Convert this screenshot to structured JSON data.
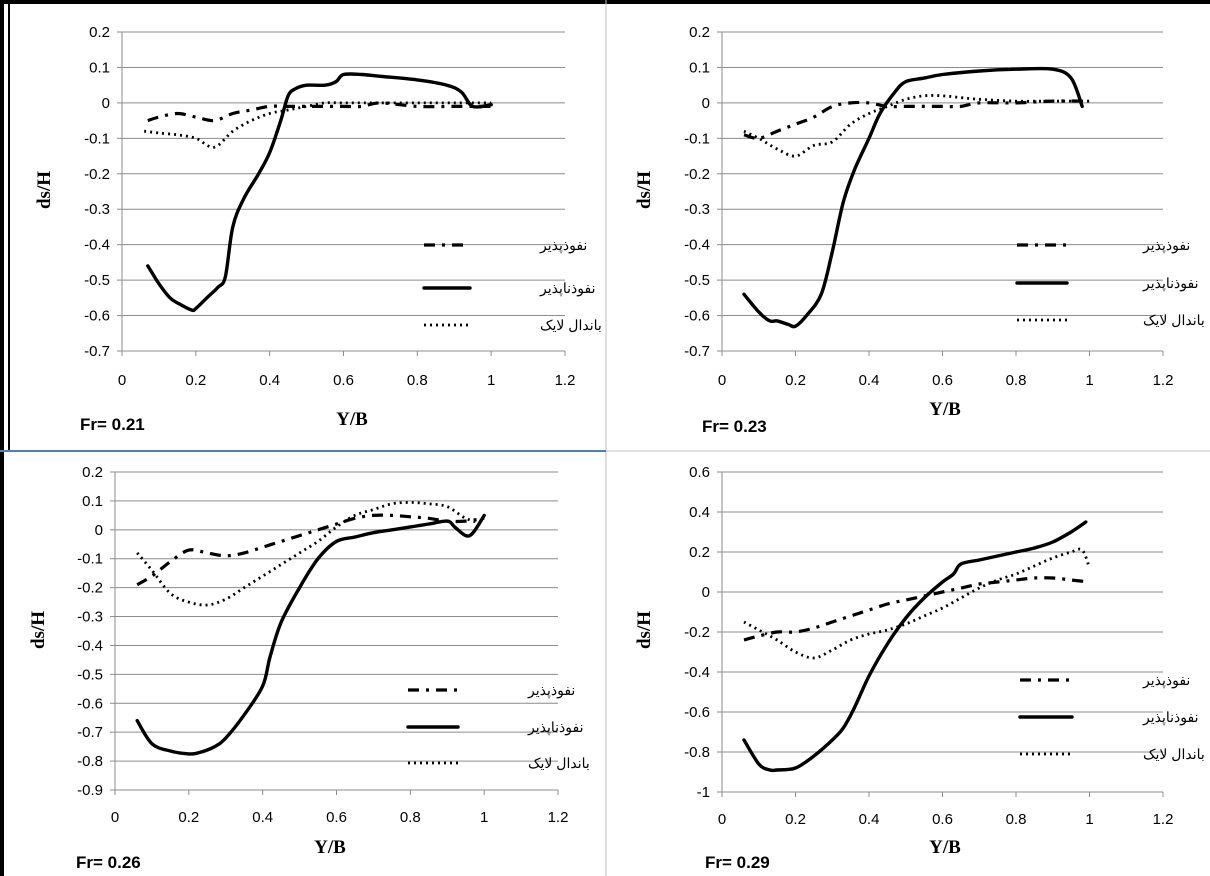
{
  "chart_data": [
    {
      "type": "line",
      "panel_label": "Fr= 0.21",
      "xlabel": "Y/B",
      "ylabel": "ds/H",
      "xlim": [
        0,
        1.2
      ],
      "ylim": [
        -0.7,
        0.2
      ],
      "xticks": [
        "0",
        "0.2",
        "0.4",
        "0.6",
        "0.8",
        "1",
        "1.2"
      ],
      "yticks": [
        "0.2",
        "0.1",
        "0",
        "-0.1",
        "-0.2",
        "-0.3",
        "-0.4",
        "-0.5",
        "-0.6",
        "-0.7"
      ],
      "grid": "horizontal",
      "legend": "bottom-right",
      "series": [
        {
          "name": "نفوذپذیر",
          "style": "dashdot",
          "x": [
            0.07,
            0.1,
            0.15,
            0.2,
            0.25,
            0.3,
            0.35,
            0.4,
            0.45,
            0.5,
            0.55,
            0.6,
            0.65,
            0.7,
            0.8,
            0.9,
            1.0
          ],
          "y": [
            -0.05,
            -0.04,
            -0.03,
            -0.04,
            -0.05,
            -0.03,
            -0.02,
            -0.01,
            -0.01,
            -0.01,
            -0.01,
            -0.01,
            -0.01,
            0.0,
            -0.01,
            -0.01,
            -0.01
          ]
        },
        {
          "name": "نفوذناپذیر",
          "style": "solid",
          "x": [
            0.07,
            0.1,
            0.13,
            0.16,
            0.19,
            0.2,
            0.23,
            0.26,
            0.28,
            0.3,
            0.33,
            0.37,
            0.4,
            0.43,
            0.45,
            0.47,
            0.5,
            0.55,
            0.58,
            0.6,
            0.65,
            0.7,
            0.8,
            0.88,
            0.92,
            0.95,
            1.0
          ],
          "y": [
            -0.46,
            -0.51,
            -0.55,
            -0.57,
            -0.585,
            -0.58,
            -0.55,
            -0.52,
            -0.49,
            -0.35,
            -0.27,
            -0.2,
            -0.14,
            -0.05,
            0.02,
            0.04,
            0.05,
            0.05,
            0.06,
            0.08,
            0.08,
            0.075,
            0.065,
            0.05,
            0.03,
            -0.01,
            -0.005
          ]
        },
        {
          "name": "باندال لایک",
          "style": "dotted",
          "x": [
            0.06,
            0.1,
            0.15,
            0.2,
            0.25,
            0.3,
            0.35,
            0.4,
            0.45,
            0.5,
            0.55,
            0.6,
            0.65,
            0.7,
            0.8,
            0.9,
            1.0
          ],
          "y": [
            -0.08,
            -0.085,
            -0.09,
            -0.1,
            -0.125,
            -0.08,
            -0.05,
            -0.03,
            -0.02,
            -0.01,
            0.0,
            0.0,
            0.0,
            0.0,
            0.0,
            0.0,
            0.0
          ]
        }
      ]
    },
    {
      "type": "line",
      "panel_label": "Fr= 0.23",
      "xlabel": "Y/B",
      "ylabel": "ds/H",
      "xlim": [
        0,
        1.2
      ],
      "ylim": [
        -0.7,
        0.2
      ],
      "xticks": [
        "0",
        "0.2",
        "0.4",
        "0.6",
        "0.8",
        "1",
        "1.2"
      ],
      "yticks": [
        "0.2",
        "0.1",
        "0",
        "-0.1",
        "-0.2",
        "-0.3",
        "-0.4",
        "-0.5",
        "-0.6",
        "-0.7"
      ],
      "grid": "horizontal",
      "legend": "bottom-right",
      "series": [
        {
          "name": "نفوذپذیر",
          "style": "dashdot",
          "x": [
            0.06,
            0.1,
            0.15,
            0.2,
            0.25,
            0.3,
            0.35,
            0.4,
            0.45,
            0.5,
            0.55,
            0.6,
            0.65,
            0.7,
            0.8,
            0.9,
            1.0
          ],
          "y": [
            -0.09,
            -0.1,
            -0.08,
            -0.06,
            -0.04,
            -0.01,
            0.0,
            0.0,
            -0.01,
            -0.01,
            -0.01,
            -0.01,
            -0.01,
            0.0,
            0.0,
            0.005,
            0.005
          ]
        },
        {
          "name": "نفوذناپذیر",
          "style": "solid",
          "x": [
            0.06,
            0.1,
            0.13,
            0.15,
            0.18,
            0.2,
            0.23,
            0.27,
            0.3,
            0.33,
            0.36,
            0.4,
            0.43,
            0.47,
            0.5,
            0.55,
            0.6,
            0.7,
            0.8,
            0.9,
            0.95,
            0.98
          ],
          "y": [
            -0.54,
            -0.59,
            -0.615,
            -0.615,
            -0.625,
            -0.63,
            -0.6,
            -0.54,
            -0.42,
            -0.28,
            -0.19,
            -0.1,
            -0.03,
            0.03,
            0.06,
            0.07,
            0.08,
            0.09,
            0.095,
            0.095,
            0.07,
            -0.01
          ]
        },
        {
          "name": "باندال لایک",
          "style": "dotted",
          "x": [
            0.06,
            0.1,
            0.15,
            0.2,
            0.25,
            0.3,
            0.35,
            0.4,
            0.45,
            0.5,
            0.55,
            0.6,
            0.65,
            0.7,
            0.8,
            0.9,
            1.0
          ],
          "y": [
            -0.08,
            -0.1,
            -0.13,
            -0.15,
            -0.12,
            -0.11,
            -0.06,
            -0.03,
            -0.01,
            0.01,
            0.02,
            0.02,
            0.015,
            0.01,
            0.005,
            0.005,
            0.005
          ]
        }
      ]
    },
    {
      "type": "line",
      "panel_label": "Fr= 0.26",
      "xlabel": "Y/B",
      "ylabel": "ds/H",
      "xlim": [
        0,
        1.2
      ],
      "ylim": [
        -0.9,
        0.2
      ],
      "xticks": [
        "0",
        "0.2",
        "0.4",
        "0.6",
        "0.8",
        "1",
        "1.2"
      ],
      "yticks": [
        "0.2",
        "0.1",
        "0",
        "-0.1",
        "-0.2",
        "-0.3",
        "-0.4",
        "-0.5",
        "-0.6",
        "-0.7",
        "-0.8",
        "-0.9"
      ],
      "grid": "horizontal",
      "legend": "bottom-right",
      "series": [
        {
          "name": "نفوذپذیر",
          "style": "dashdot",
          "x": [
            0.06,
            0.1,
            0.15,
            0.2,
            0.25,
            0.3,
            0.35,
            0.4,
            0.45,
            0.5,
            0.55,
            0.6,
            0.65,
            0.7,
            0.75,
            0.8,
            0.85,
            0.9,
            0.95,
            1.0
          ],
          "y": [
            -0.19,
            -0.16,
            -0.11,
            -0.07,
            -0.08,
            -0.09,
            -0.08,
            -0.06,
            -0.04,
            -0.02,
            0.0,
            0.02,
            0.04,
            0.05,
            0.05,
            0.045,
            0.04,
            0.03,
            0.03,
            0.04
          ]
        },
        {
          "name": "نفوذناپذیر",
          "style": "solid",
          "x": [
            0.06,
            0.1,
            0.15,
            0.2,
            0.23,
            0.27,
            0.3,
            0.35,
            0.4,
            0.42,
            0.45,
            0.5,
            0.55,
            0.6,
            0.65,
            0.7,
            0.75,
            0.8,
            0.85,
            0.9,
            0.92,
            0.95,
            0.97,
            1.0
          ],
          "y": [
            -0.66,
            -0.74,
            -0.765,
            -0.775,
            -0.77,
            -0.75,
            -0.72,
            -0.64,
            -0.54,
            -0.44,
            -0.32,
            -0.2,
            -0.1,
            -0.04,
            -0.025,
            -0.01,
            0.0,
            0.01,
            0.02,
            0.03,
            0.01,
            -0.02,
            -0.01,
            0.05
          ]
        },
        {
          "name": "باندال لایک",
          "style": "dotted",
          "x": [
            0.06,
            0.1,
            0.15,
            0.2,
            0.25,
            0.3,
            0.35,
            0.4,
            0.45,
            0.5,
            0.55,
            0.6,
            0.65,
            0.7,
            0.75,
            0.8,
            0.85,
            0.9,
            0.95,
            1.0
          ],
          "y": [
            -0.08,
            -0.14,
            -0.22,
            -0.25,
            -0.26,
            -0.24,
            -0.2,
            -0.16,
            -0.12,
            -0.08,
            -0.04,
            0.01,
            0.05,
            0.07,
            0.09,
            0.095,
            0.09,
            0.08,
            0.04,
            0.02
          ]
        }
      ]
    },
    {
      "type": "line",
      "panel_label": "Fr= 0.29",
      "xlabel": "Y/B",
      "ylabel": "ds/H",
      "xlim": [
        0,
        1.2
      ],
      "ylim": [
        -1,
        0.6
      ],
      "xticks": [
        "0",
        "0.2",
        "0.4",
        "0.6",
        "0.8",
        "1",
        "1.2"
      ],
      "yticks": [
        "0.6",
        "0.4",
        "0.2",
        "0",
        "-0.2",
        "-0.4",
        "-0.6",
        "-0.8",
        "-1"
      ],
      "grid": "horizontal",
      "legend": "bottom-right",
      "series": [
        {
          "name": "نفوذپذیر",
          "style": "dashdot",
          "x": [
            0.06,
            0.1,
            0.15,
            0.2,
            0.25,
            0.3,
            0.35,
            0.4,
            0.45,
            0.5,
            0.55,
            0.6,
            0.65,
            0.7,
            0.75,
            0.8,
            0.85,
            0.9,
            0.95,
            1.0
          ],
          "y": [
            -0.24,
            -0.22,
            -0.2,
            -0.2,
            -0.18,
            -0.15,
            -0.12,
            -0.09,
            -0.06,
            -0.04,
            -0.02,
            0.0,
            0.02,
            0.04,
            0.05,
            0.06,
            0.07,
            0.07,
            0.06,
            0.05
          ]
        },
        {
          "name": "نفوذناپذیر",
          "style": "solid",
          "x": [
            0.06,
            0.1,
            0.13,
            0.15,
            0.2,
            0.25,
            0.3,
            0.33,
            0.36,
            0.4,
            0.45,
            0.5,
            0.55,
            0.6,
            0.63,
            0.65,
            0.7,
            0.75,
            0.8,
            0.85,
            0.9,
            0.95,
            0.99
          ],
          "y": [
            -0.74,
            -0.86,
            -0.89,
            -0.89,
            -0.88,
            -0.82,
            -0.74,
            -0.68,
            -0.58,
            -0.42,
            -0.26,
            -0.13,
            -0.03,
            0.05,
            0.09,
            0.14,
            0.16,
            0.18,
            0.2,
            0.22,
            0.25,
            0.3,
            0.35
          ]
        },
        {
          "name": "باندال لایک",
          "style": "dotted",
          "x": [
            0.06,
            0.1,
            0.15,
            0.2,
            0.25,
            0.3,
            0.35,
            0.4,
            0.45,
            0.5,
            0.55,
            0.6,
            0.65,
            0.7,
            0.75,
            0.8,
            0.85,
            0.9,
            0.95,
            0.98,
            1.0
          ],
          "y": [
            -0.15,
            -0.19,
            -0.24,
            -0.3,
            -0.33,
            -0.29,
            -0.24,
            -0.21,
            -0.19,
            -0.16,
            -0.12,
            -0.08,
            -0.03,
            0.02,
            0.06,
            0.09,
            0.13,
            0.17,
            0.2,
            0.21,
            0.12
          ]
        }
      ]
    }
  ]
}
